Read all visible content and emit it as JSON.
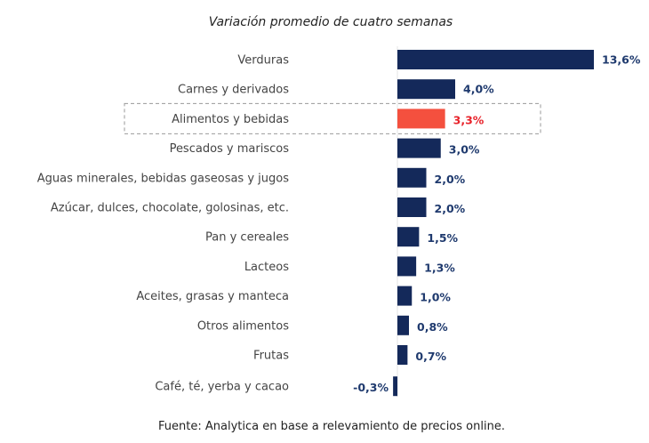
{
  "chart_data": {
    "type": "bar",
    "orientation": "horizontal",
    "title": "Variación promedio de cuatro semanas",
    "categories": [
      "Verduras",
      "Carnes y derivados",
      "Alimentos y bebidas",
      "Pescados y mariscos",
      "Aguas minerales, bebidas gaseosas y jugos",
      "Azúcar, dulces, chocolate, golosinas, etc.",
      "Pan y cereales",
      "Lacteos",
      "Aceites, grasas y manteca",
      "Otros alimentos",
      "Frutas",
      "Café, té, yerba y cacao"
    ],
    "values": [
      13.6,
      4.0,
      3.3,
      3.0,
      2.0,
      2.0,
      1.5,
      1.3,
      1.0,
      0.8,
      0.7,
      -0.3
    ],
    "value_labels": [
      "13,6%",
      "4,0%",
      "3,3%",
      "3,0%",
      "2,0%",
      "2,0%",
      "1,5%",
      "1,3%",
      "1,0%",
      "0,8%",
      "0,7%",
      "-0,3%"
    ],
    "highlighted_category": "Alimentos y bebidas",
    "unit": "%",
    "grid": false,
    "legend": "none",
    "colors": {
      "bar": "#14295a",
      "highlight": "#f4503e",
      "highlight_label": "#e8232b",
      "label": "#1f3a6e"
    },
    "source": "Fuente: Analytica en base a relevamiento de precios online."
  }
}
